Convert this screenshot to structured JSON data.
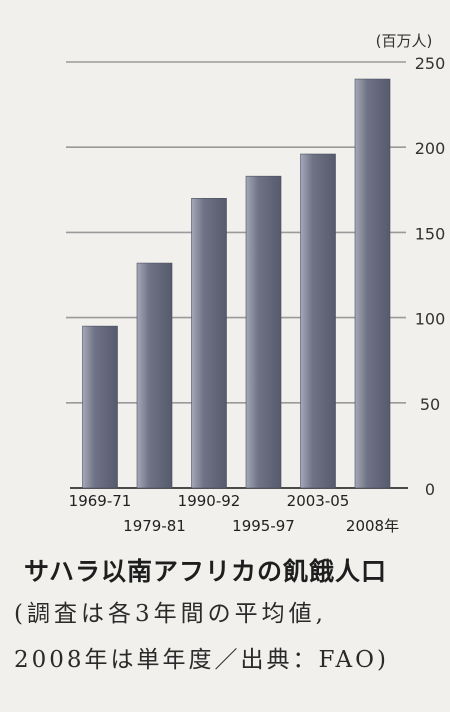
{
  "chart_data": {
    "type": "bar",
    "title": "",
    "xlabel": "",
    "ylabel": "",
    "unit": "(百万人)",
    "ylim": [
      0,
      250
    ],
    "yticks": [
      0,
      50,
      100,
      150,
      200,
      250
    ],
    "grid": true,
    "categories": [
      "1969-71",
      "1979-81",
      "1990-92",
      "1995-97",
      "2003-05",
      "2008年"
    ],
    "values": [
      95,
      132,
      170,
      183,
      196,
      240
    ],
    "colors": {
      "bar": "#6f7386",
      "bar_highlight": "#a4a8b7",
      "grid": "#9a9a9a"
    }
  },
  "caption": {
    "title": "サハラ以南アフリカの飢餓人口",
    "line1": "(調査は各3年間の平均値,",
    "line2": "2008年は単年度／出典：FAO)"
  }
}
